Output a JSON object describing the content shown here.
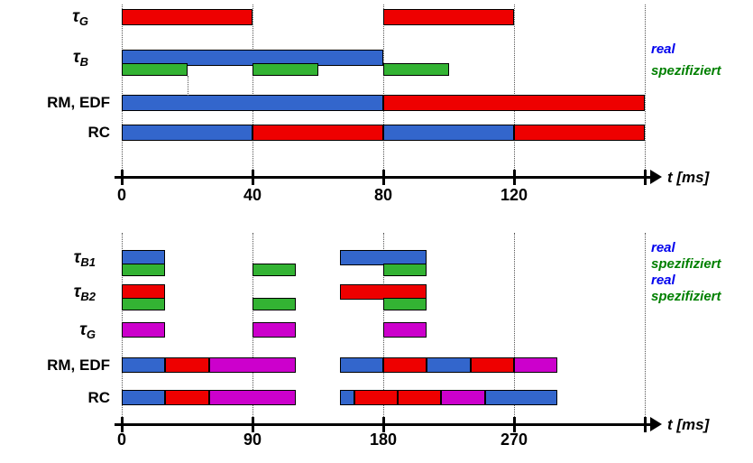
{
  "figure": {
    "description": "Timing diagrams comparing real vs specified task execution under RM/EDF and RC scheduling",
    "background": "#ffffff"
  },
  "colors": {
    "red": "#ee0000",
    "blue": "#3366cc",
    "green": "#33b333",
    "magenta": "#cc00cc",
    "legend_real": "#0000ee",
    "legend_spez": "#008000",
    "axis": "#000000"
  },
  "chart_data": [
    {
      "type": "gantt",
      "title": "",
      "xlabel": "t [ms]",
      "axis": {
        "unit": "ms",
        "tick_values": [
          0,
          40,
          80,
          120
        ],
        "gridline_values": [
          0,
          40,
          80,
          120,
          160
        ],
        "xmax": 160
      },
      "marker_t": 20,
      "rows": [
        {
          "label": "τ",
          "sub": "G",
          "bars": [
            {
              "start": 0,
              "end": 40,
              "color": "red"
            },
            {
              "start": 80,
              "end": 120,
              "color": "red"
            }
          ]
        },
        {
          "label": "τ",
          "sub": "B",
          "bars": [
            {
              "start": 0,
              "end": 80,
              "color": "blue"
            }
          ],
          "sub_bars": [
            {
              "start": 0,
              "end": 20,
              "color": "green"
            },
            {
              "start": 40,
              "end": 60,
              "color": "green"
            },
            {
              "start": 80,
              "end": 100,
              "color": "green"
            }
          ]
        },
        {
          "label": "RM, EDF",
          "sub": "",
          "bars": [
            {
              "start": 0,
              "end": 80,
              "color": "blue"
            },
            {
              "start": 80,
              "end": 160,
              "color": "red"
            }
          ]
        },
        {
          "label": "RC",
          "sub": "",
          "bars": [
            {
              "start": 0,
              "end": 40,
              "color": "blue"
            },
            {
              "start": 40,
              "end": 80,
              "color": "red"
            },
            {
              "start": 80,
              "end": 120,
              "color": "blue"
            },
            {
              "start": 120,
              "end": 160,
              "color": "red"
            }
          ]
        }
      ],
      "legend": [
        {
          "label": "real",
          "color_key": "legend_real"
        },
        {
          "label": "spezifiziert",
          "color_key": "legend_spez"
        }
      ]
    },
    {
      "type": "gantt",
      "title": "",
      "xlabel": "t [ms]",
      "axis": {
        "unit": "ms",
        "tick_values": [
          0,
          90,
          180,
          270
        ],
        "gridline_values": [
          0,
          90,
          180,
          270,
          360
        ],
        "xmax": 360
      },
      "rows": [
        {
          "label": "τ",
          "sub": "B1",
          "bars": [
            {
              "start": 0,
              "end": 30,
              "color": "blue"
            },
            {
              "start": 150,
              "end": 210,
              "color": "blue"
            }
          ],
          "sub_bars": [
            {
              "start": 0,
              "end": 30,
              "color": "green"
            },
            {
              "start": 90,
              "end": 120,
              "color": "green"
            },
            {
              "start": 180,
              "end": 210,
              "color": "green"
            }
          ]
        },
        {
          "label": "τ",
          "sub": "B2",
          "bars": [
            {
              "start": 0,
              "end": 30,
              "color": "red"
            },
            {
              "start": 150,
              "end": 210,
              "color": "red"
            }
          ],
          "sub_bars": [
            {
              "start": 0,
              "end": 30,
              "color": "green"
            },
            {
              "start": 90,
              "end": 120,
              "color": "green"
            },
            {
              "start": 180,
              "end": 210,
              "color": "green"
            }
          ]
        },
        {
          "label": "τ",
          "sub": "G",
          "bars": [
            {
              "start": 0,
              "end": 30,
              "color": "magenta"
            },
            {
              "start": 90,
              "end": 120,
              "color": "magenta"
            },
            {
              "start": 180,
              "end": 210,
              "color": "magenta"
            }
          ]
        },
        {
          "label": "RM, EDF",
          "sub": "",
          "bars": [
            {
              "start": 0,
              "end": 30,
              "color": "blue"
            },
            {
              "start": 30,
              "end": 60,
              "color": "red"
            },
            {
              "start": 60,
              "end": 120,
              "color": "magenta"
            },
            {
              "start": 150,
              "end": 180,
              "color": "blue"
            },
            {
              "start": 180,
              "end": 210,
              "color": "red"
            },
            {
              "start": 210,
              "end": 240,
              "color": "blue"
            },
            {
              "start": 240,
              "end": 270,
              "color": "red"
            },
            {
              "start": 270,
              "end": 300,
              "color": "magenta"
            }
          ]
        },
        {
          "label": "RC",
          "sub": "",
          "bars": [
            {
              "start": 0,
              "end": 30,
              "color": "blue"
            },
            {
              "start": 30,
              "end": 60,
              "color": "red"
            },
            {
              "start": 60,
              "end": 120,
              "color": "magenta"
            },
            {
              "start": 150,
              "end": 160,
              "color": "blue"
            },
            {
              "start": 160,
              "end": 190,
              "color": "red"
            },
            {
              "start": 190,
              "end": 220,
              "color": "red"
            },
            {
              "start": 220,
              "end": 250,
              "color": "magenta"
            },
            {
              "start": 250,
              "end": 300,
              "color": "blue"
            }
          ]
        }
      ],
      "legend": [
        {
          "label": "real",
          "color_key": "legend_real"
        },
        {
          "label": "spezifiziert",
          "color_key": "legend_spez"
        },
        {
          "label": "real",
          "color_key": "legend_real"
        },
        {
          "label": "spezifiziert",
          "color_key": "legend_spez"
        }
      ]
    }
  ]
}
